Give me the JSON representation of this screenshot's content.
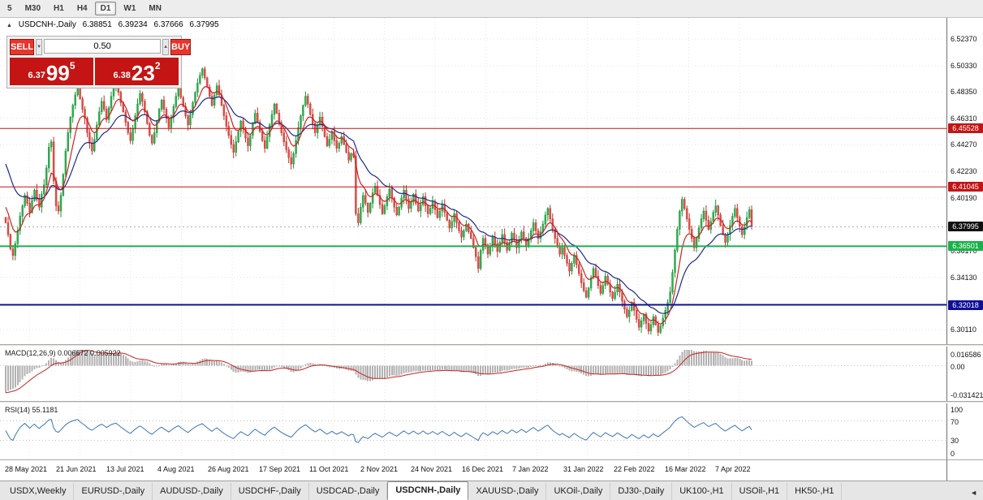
{
  "toolbar": {
    "timeframes": [
      "5",
      "M30",
      "H1",
      "H4",
      "D1",
      "W1",
      "MN"
    ],
    "active_timeframe": "D1"
  },
  "chart_header": {
    "symbol_label": "USDCNH-,Daily",
    "open": "6.38851",
    "high": "6.39234",
    "low": "6.37666",
    "close": "6.37995"
  },
  "icons": {
    "collapse_icon": "▲",
    "volume_down_icon": "▼",
    "volume_up_icon": "▲",
    "tab_scroll_icon": "◄"
  },
  "trade_panel": {
    "sell_label": "SELL",
    "buy_label": "BUY",
    "volume": "0.50",
    "sell_price": {
      "small": "6.37",
      "big": "99",
      "sup": "5"
    },
    "buy_price": {
      "small": "6.38",
      "big": "23",
      "sup": "2"
    }
  },
  "indicators": {
    "macd": {
      "label": "MACD(12,26,9) 0.006672 0.005922",
      "axis": [
        "0.016586",
        "0.00",
        "-0.031421"
      ]
    },
    "rsi": {
      "label": "RSI(14) 55.1181",
      "axis": [
        "100",
        "70",
        "30",
        "0"
      ]
    }
  },
  "bottom_tabs": {
    "active": "USDCNH-,Daily",
    "tabs": [
      "USDX,Weekly",
      "EURUSD-,Daily",
      "AUDUSD-,Daily",
      "USDCHF-,Daily",
      "USDCAD-,Daily",
      "USDCNH-,Daily",
      "XAUUSD-,Daily",
      "UKOil-,Daily",
      "DJ30-,Daily",
      "UK100-,H1",
      "USOil-,H1",
      "HK50-,H1"
    ]
  },
  "chart_data": {
    "type": "candlestick",
    "symbol": "USDCNH-",
    "timeframe": "Daily",
    "title": "USDCNH-,Daily",
    "ylim": [
      6.295,
      6.535
    ],
    "grid": true,
    "up_color": "#2fae4e",
    "down_color": "#e05048",
    "ma_fast": 8,
    "ma_slow": 21,
    "ma_fast_color": "#cc2222",
    "ma_slow_color": "#1b2a8e",
    "macd_ylim": [
      -0.031421,
      0.016586
    ],
    "rsi_levels": [
      70,
      30
    ],
    "current_price": {
      "v": 6.37995,
      "label": "6.37995"
    },
    "levels": [
      {
        "v": 6.45528,
        "label": "6.45528",
        "color": "#c41414",
        "width": 1
      },
      {
        "v": 6.41045,
        "label": "6.41045",
        "color": "#c41414",
        "width": 1
      },
      {
        "v": 6.36501,
        "label": "6.36501",
        "color": "#18b24a",
        "width": 2
      },
      {
        "v": 6.32018,
        "label": "6.32018",
        "color": "#101095",
        "width": 2
      }
    ],
    "y_ticks": [
      {
        "v": 6.5237,
        "label": "6.52370"
      },
      {
        "v": 6.5033,
        "label": "6.50330"
      },
      {
        "v": 6.4835,
        "label": "6.48350"
      },
      {
        "v": 6.4631,
        "label": "6.46310"
      },
      {
        "v": 6.4427,
        "label": "6.44270"
      },
      {
        "v": 6.4223,
        "label": "6.42230"
      },
      {
        "v": 6.4019,
        "label": "6.40190"
      },
      {
        "v": 6.3617,
        "label": "6.36170"
      },
      {
        "v": 6.3413,
        "label": "6.34130"
      },
      {
        "v": 6.3011,
        "label": "6.30110"
      }
    ],
    "x_labels": [
      "28 May 2021",
      "21 Jun 2021",
      "13 Jul 2021",
      "4 Aug 2021",
      "26 Aug 2021",
      "17 Sep 2021",
      "11 Oct 2021",
      "2 Nov 2021",
      "24 Nov 2021",
      "16 Dec 2021",
      "7 Jan 2022",
      "31 Jan 2022",
      "22 Feb 2022",
      "16 Mar 2022",
      "7 Apr 2022"
    ],
    "closes": [
      6.383,
      6.374,
      6.363,
      6.358,
      6.367,
      6.377,
      6.388,
      6.396,
      6.404,
      6.398,
      6.391,
      6.4,
      6.408,
      6.401,
      6.395,
      6.405,
      6.412,
      6.425,
      6.441,
      6.445,
      6.415,
      6.396,
      6.392,
      6.404,
      6.42,
      6.438,
      6.452,
      6.464,
      6.473,
      6.481,
      6.487,
      6.478,
      6.47,
      6.463,
      6.452,
      6.444,
      6.438,
      6.447,
      6.458,
      6.468,
      6.476,
      6.47,
      6.462,
      6.471,
      6.48,
      6.486,
      6.49,
      6.483,
      6.475,
      6.468,
      6.46,
      6.452,
      6.446,
      6.455,
      6.465,
      6.474,
      6.482,
      6.476,
      6.468,
      6.459,
      6.45,
      6.444,
      6.452,
      6.461,
      6.47,
      6.477,
      6.47,
      6.463,
      6.456,
      6.464,
      6.472,
      6.48,
      6.486,
      6.479,
      6.472,
      6.465,
      6.458,
      6.466,
      6.475,
      6.483,
      6.49,
      6.496,
      6.501,
      6.494,
      6.487,
      6.48,
      6.473,
      6.481,
      6.488,
      6.481,
      6.473,
      6.465,
      6.457,
      6.45,
      6.443,
      6.437,
      6.445,
      6.453,
      6.461,
      6.455,
      6.448,
      6.442,
      6.45,
      6.459,
      6.467,
      6.46,
      6.453,
      6.446,
      6.44,
      6.449,
      6.458,
      6.466,
      6.474,
      6.467,
      6.459,
      6.452,
      6.445,
      6.439,
      6.433,
      6.428,
      6.436,
      6.446,
      6.456,
      6.465,
      6.473,
      6.48,
      6.474,
      6.466,
      6.459,
      6.452,
      6.458,
      6.464,
      6.457,
      6.449,
      6.442,
      6.447,
      6.453,
      6.446,
      6.44,
      6.444,
      6.449,
      6.443,
      6.437,
      6.431,
      6.436,
      6.434,
      6.39,
      6.383,
      6.395,
      6.404,
      6.398,
      6.391,
      6.398,
      6.406,
      6.411,
      6.404,
      6.397,
      6.39,
      6.396,
      6.403,
      6.409,
      6.402,
      6.395,
      6.389,
      6.395,
      6.402,
      6.408,
      6.401,
      6.394,
      6.399,
      6.405,
      6.398,
      6.392,
      6.397,
      6.403,
      6.396,
      6.39,
      6.394,
      6.399,
      6.393,
      6.387,
      6.392,
      6.397,
      6.391,
      6.385,
      6.379,
      6.384,
      6.39,
      6.383,
      6.377,
      6.372,
      6.377,
      6.382,
      6.376,
      6.371,
      6.364,
      6.357,
      6.348,
      6.362,
      6.371,
      6.366,
      6.359,
      6.365,
      6.372,
      6.367,
      6.361,
      6.368,
      6.374,
      6.368,
      6.362,
      6.368,
      6.375,
      6.37,
      6.364,
      6.37,
      6.376,
      6.371,
      6.365,
      6.371,
      6.377,
      6.383,
      6.377,
      6.371,
      6.376,
      6.382,
      6.389,
      6.394,
      6.386,
      6.378,
      6.371,
      6.365,
      6.359,
      6.364,
      6.358,
      6.352,
      6.346,
      6.352,
      6.358,
      6.351,
      6.344,
      6.337,
      6.331,
      6.326,
      6.333,
      6.341,
      6.348,
      6.342,
      6.335,
      6.329,
      6.335,
      6.342,
      6.336,
      6.33,
      6.325,
      6.33,
      6.336,
      6.33,
      6.323,
      6.317,
      6.311,
      6.316,
      6.322,
      6.316,
      6.309,
      6.303,
      6.308,
      6.313,
      6.306,
      6.3,
      6.305,
      6.311,
      6.305,
      6.299,
      6.304,
      6.31,
      6.316,
      6.322,
      6.33,
      6.345,
      6.362,
      6.378,
      6.392,
      6.401,
      6.394,
      6.386,
      6.378,
      6.371,
      6.364,
      6.371,
      6.379,
      6.386,
      6.392,
      6.385,
      6.378,
      6.384,
      6.391,
      6.396,
      6.389,
      6.381,
      6.374,
      6.368,
      6.374,
      6.381,
      6.388,
      6.394,
      6.387,
      6.38,
      6.374,
      6.38,
      6.387,
      6.393,
      6.37995
    ]
  }
}
